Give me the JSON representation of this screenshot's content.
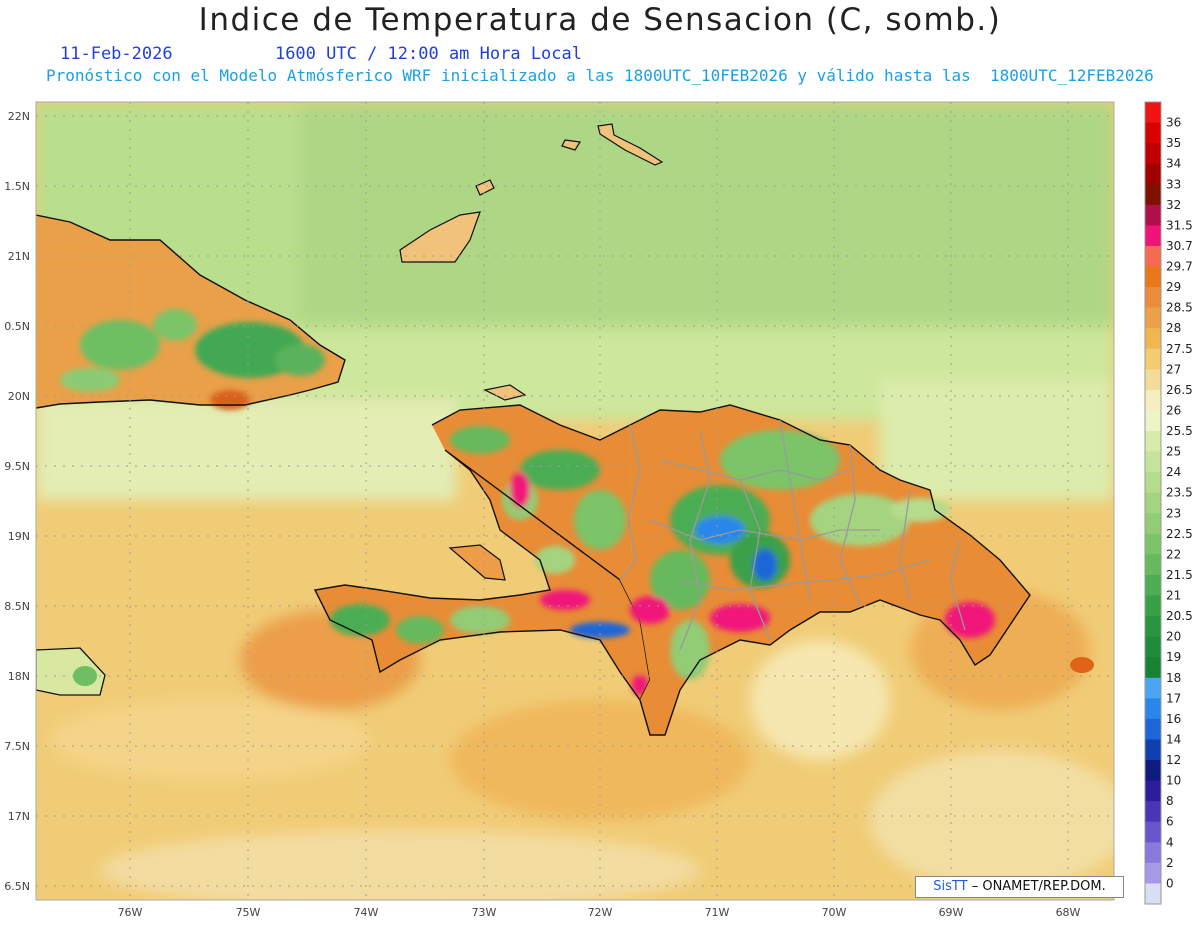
{
  "title": "Indice de Temperatura de Sensacion (C, somb.)",
  "date": "11-Feb-2026",
  "time": "1600 UTC / 12:00 am Hora Local",
  "description": "Pronóstico con el Modelo Atmósferico WRF inicializado a las 1800UTC_10FEB2026 y válido hasta las  1800UTC_12FEB2026",
  "credit": {
    "brand": "SisTT",
    "text": " ONAMET/REP.DOM."
  },
  "lat_labels": [
    "22N",
    "1.5N",
    "21N",
    "0.5N",
    "20N",
    "9.5N",
    "19N",
    "8.5N",
    "18N",
    "7.5N",
    "17N",
    "6.5N"
  ],
  "lon_labels": [
    "76W",
    "75W",
    "74W",
    "73W",
    "72W",
    "71W",
    "70W",
    "69W",
    "68W"
  ],
  "colorbar": {
    "labels": [
      "36",
      "35",
      "34",
      "33",
      "32",
      "31.5",
      "30.7",
      "29.7",
      "29",
      "28.5",
      "28",
      "27.5",
      "27",
      "26.5",
      "26",
      "25.5",
      "25",
      "24",
      "23.5",
      "23",
      "22.5",
      "22",
      "21.5",
      "21",
      "20.5",
      "20",
      "19",
      "18",
      "17",
      "16",
      "14",
      "12",
      "10",
      "8",
      "6",
      "4",
      "2",
      "0"
    ],
    "colors": [
      "#f01414",
      "#d80000",
      "#c00000",
      "#a00000",
      "#801000",
      "#b0104a",
      "#f0147a",
      "#f56a50",
      "#e8781a",
      "#ea8c3a",
      "#eda04a",
      "#f0b650",
      "#f4cc70",
      "#f3dc9a",
      "#f7eec0",
      "#eef3c8",
      "#d7ecaa",
      "#c5e49a",
      "#b5dc8c",
      "#a4d480",
      "#92cc74",
      "#7cc468",
      "#66b95c",
      "#4cad52",
      "#3aa048",
      "#2a9540",
      "#1e8c3a",
      "#168232",
      "#4aa6f2",
      "#2a86ea",
      "#1c66d8",
      "#1040b0",
      "#101a80",
      "#2c1e9a",
      "#4a36b4",
      "#6a54cc",
      "#8a78dc",
      "#a898ea",
      "#dcdcf4"
    ]
  }
}
